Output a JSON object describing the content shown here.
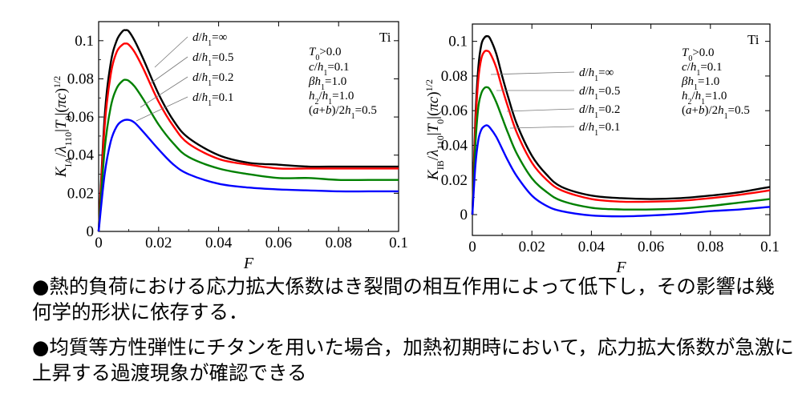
{
  "colors": {
    "black": "#000000",
    "red": "#ff0000",
    "green": "#008000",
    "blue": "#0000ff",
    "leader": "#777777"
  },
  "chart_data": [
    {
      "type": "line",
      "material": "Ti",
      "xlabel": "F",
      "ylabel_main": "K",
      "ylabel_sub": "IA",
      "ylabel_rest": "/λ",
      "ylabel_sub2": "110",
      "ylabel_tail": "|T",
      "ylabel_sub3": "0",
      "ylabel_end": "|(πc)",
      "ylabel_sup": "1/2",
      "xlim": [
        0,
        0.1
      ],
      "ylim": [
        0,
        0.11
      ],
      "x_ticks": [
        "0",
        "0.02",
        "0.04",
        "0.06",
        "0.08",
        "0.1"
      ],
      "y_ticks": [
        "0",
        "0.02",
        "0.04",
        "0.06",
        "0.08",
        "0.1"
      ],
      "params": [
        "T0>0.0",
        "c/h1=0.1",
        "βh1=1.0",
        "h2/h1=1.0",
        "(a+b)/2h1=0.5"
      ],
      "series": [
        {
          "name": "d/h1=∞",
          "color": "black",
          "x": [
            0,
            0.002,
            0.004,
            0.006,
            0.008,
            0.009,
            0.01,
            0.012,
            0.015,
            0.02,
            0.025,
            0.03,
            0.04,
            0.05,
            0.06,
            0.07,
            0.08,
            0.09,
            0.1
          ],
          "y": [
            0,
            0.06,
            0.088,
            0.1,
            0.105,
            0.1055,
            0.105,
            0.1,
            0.09,
            0.072,
            0.058,
            0.049,
            0.04,
            0.036,
            0.035,
            0.034,
            0.034,
            0.034,
            0.034
          ]
        },
        {
          "name": "d/h1=0.5",
          "color": "red",
          "x": [
            0,
            0.002,
            0.004,
            0.006,
            0.008,
            0.009,
            0.01,
            0.012,
            0.015,
            0.02,
            0.025,
            0.03,
            0.04,
            0.05,
            0.06,
            0.07,
            0.08,
            0.09,
            0.1
          ],
          "y": [
            0,
            0.055,
            0.082,
            0.094,
            0.098,
            0.0985,
            0.098,
            0.094,
            0.085,
            0.068,
            0.055,
            0.046,
            0.038,
            0.035,
            0.033,
            0.033,
            0.033,
            0.033,
            0.033
          ]
        },
        {
          "name": "d/h1=0.2",
          "color": "green",
          "x": [
            0,
            0.002,
            0.004,
            0.006,
            0.008,
            0.009,
            0.01,
            0.012,
            0.015,
            0.02,
            0.025,
            0.03,
            0.04,
            0.05,
            0.06,
            0.07,
            0.08,
            0.09,
            0.1
          ],
          "y": [
            0,
            0.043,
            0.065,
            0.075,
            0.079,
            0.0795,
            0.079,
            0.076,
            0.069,
            0.056,
            0.046,
            0.039,
            0.033,
            0.03,
            0.028,
            0.028,
            0.027,
            0.027,
            0.027
          ]
        },
        {
          "name": "d/h1=0.1",
          "color": "blue",
          "x": [
            0,
            0.002,
            0.004,
            0.006,
            0.008,
            0.01,
            0.012,
            0.015,
            0.02,
            0.025,
            0.03,
            0.04,
            0.05,
            0.06,
            0.07,
            0.08,
            0.09,
            0.1
          ],
          "y": [
            0,
            0.03,
            0.047,
            0.055,
            0.058,
            0.0585,
            0.057,
            0.052,
            0.043,
            0.035,
            0.03,
            0.025,
            0.023,
            0.022,
            0.0215,
            0.021,
            0.021,
            0.021
          ]
        }
      ]
    },
    {
      "type": "line",
      "material": "Ti",
      "xlabel": "F",
      "ylabel_main": "K",
      "ylabel_sub": "IB",
      "ylabel_rest": "/λ",
      "ylabel_sub2": "110",
      "ylabel_tail": "|T",
      "ylabel_sub3": "0",
      "ylabel_end": "|(πc)",
      "ylabel_sup": "1/2",
      "xlim": [
        0,
        0.1
      ],
      "ylim": [
        -0.012,
        0.11
      ],
      "x_ticks": [
        "0",
        "0.02",
        "0.04",
        "0.06",
        "0.08",
        "0.1"
      ],
      "y_ticks": [
        "0",
        "0.02",
        "0.04",
        "0.06",
        "0.08",
        "0.1"
      ],
      "params": [
        "T0>0.0",
        "c/h1=0.1",
        "βh1=1.0",
        "h2/h1=1.0",
        "(a+b)/2h1=0.5"
      ],
      "series": [
        {
          "name": "d/h1=∞",
          "color": "black",
          "x": [
            0,
            0.001,
            0.002,
            0.003,
            0.004,
            0.005,
            0.006,
            0.008,
            0.01,
            0.012,
            0.015,
            0.02,
            0.025,
            0.03,
            0.04,
            0.05,
            0.06,
            0.07,
            0.08,
            0.09,
            0.1
          ],
          "y": [
            0,
            0.055,
            0.085,
            0.098,
            0.102,
            0.103,
            0.1015,
            0.093,
            0.08,
            0.068,
            0.052,
            0.034,
            0.023,
            0.016,
            0.011,
            0.0095,
            0.009,
            0.0095,
            0.011,
            0.013,
            0.016
          ]
        },
        {
          "name": "d/h1=0.5",
          "color": "red",
          "x": [
            0,
            0.001,
            0.002,
            0.003,
            0.004,
            0.005,
            0.006,
            0.008,
            0.01,
            0.012,
            0.015,
            0.02,
            0.025,
            0.03,
            0.04,
            0.05,
            0.06,
            0.07,
            0.08,
            0.09,
            0.1
          ],
          "y": [
            0,
            0.05,
            0.078,
            0.09,
            0.094,
            0.0945,
            0.093,
            0.085,
            0.073,
            0.062,
            0.047,
            0.03,
            0.02,
            0.014,
            0.009,
            0.0075,
            0.0075,
            0.008,
            0.0095,
            0.0115,
            0.014
          ]
        },
        {
          "name": "d/h1=0.2",
          "color": "green",
          "x": [
            0,
            0.001,
            0.002,
            0.003,
            0.004,
            0.005,
            0.006,
            0.008,
            0.01,
            0.012,
            0.015,
            0.02,
            0.025,
            0.03,
            0.04,
            0.05,
            0.06,
            0.07,
            0.08,
            0.09,
            0.1
          ],
          "y": [
            0,
            0.04,
            0.062,
            0.07,
            0.073,
            0.0735,
            0.072,
            0.065,
            0.056,
            0.047,
            0.035,
            0.021,
            0.013,
            0.008,
            0.004,
            0.003,
            0.003,
            0.0035,
            0.005,
            0.007,
            0.009
          ]
        },
        {
          "name": "d/h1=0.1",
          "color": "blue",
          "x": [
            0,
            0.001,
            0.002,
            0.003,
            0.004,
            0.005,
            0.006,
            0.008,
            0.01,
            0.012,
            0.015,
            0.02,
            0.025,
            0.03,
            0.04,
            0.05,
            0.06,
            0.07,
            0.08,
            0.09,
            0.1
          ],
          "y": [
            0,
            0.028,
            0.043,
            0.049,
            0.051,
            0.0515,
            0.05,
            0.045,
            0.038,
            0.031,
            0.022,
            0.011,
            0.005,
            0.002,
            -0.0005,
            -0.001,
            -0.0005,
            0.0005,
            0.002,
            0.003,
            0.0045
          ]
        }
      ]
    }
  ],
  "bullets": [
    "●熱的負荷における応力拡大係数はき裂間の相互作用によって低下し，その影響は幾何学的形状に依存する．",
    "●均質等方性弾性にチタンを用いた場合，加熱初期時において，応力拡大係数が急激に上昇する過渡現象が確認できる"
  ]
}
